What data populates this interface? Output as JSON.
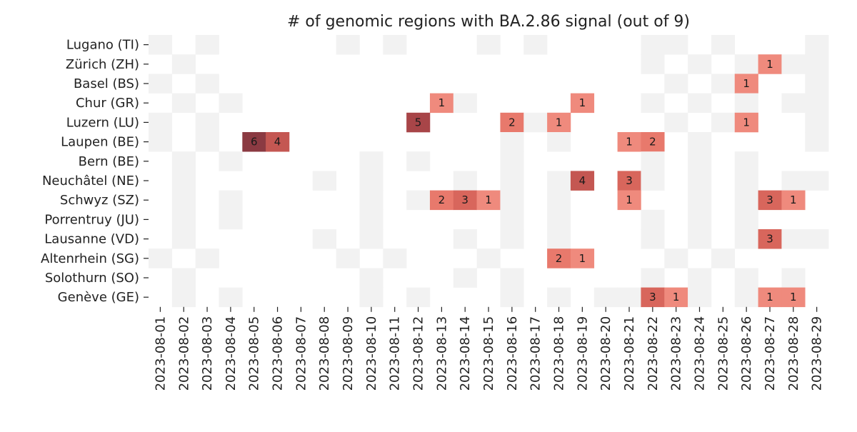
{
  "chart_data": {
    "type": "heatmap",
    "title": "# of genomic regions with BA.2.86 signal (out of 9)",
    "xlabel": "",
    "ylabel": "",
    "value_range": [
      0,
      9
    ],
    "colors": {
      "no_data": "#ffffff",
      "zero": "#f2f2f2",
      "scale": [
        "#ef8a7d",
        "#e8796c",
        "#d8665c",
        "#c45752",
        "#a84548",
        "#8b3a42"
      ]
    },
    "x_categories": [
      "2023-08-01",
      "2023-08-02",
      "2023-08-03",
      "2023-08-04",
      "2023-08-05",
      "2023-08-06",
      "2023-08-07",
      "2023-08-08",
      "2023-08-09",
      "2023-08-10",
      "2023-08-11",
      "2023-08-12",
      "2023-08-13",
      "2023-08-14",
      "2023-08-15",
      "2023-08-16",
      "2023-08-17",
      "2023-08-18",
      "2023-08-19",
      "2023-08-20",
      "2023-08-21",
      "2023-08-22",
      "2023-08-23",
      "2023-08-24",
      "2023-08-25",
      "2023-08-26",
      "2023-08-27",
      "2023-08-28",
      "2023-08-29"
    ],
    "y_categories": [
      "Lugano (TI)",
      "Zürich (ZH)",
      "Basel (BS)",
      "Chur (GR)",
      "Luzern (LU)",
      "Laupen (BE)",
      "Bern (BE)",
      "Neuchâtel (NE)",
      "Schwyz (SZ)",
      "Porrentruy (JU)",
      "Lausanne (VD)",
      "Altenrhein (SG)",
      "Solothurn (SO)",
      "Genève (GE)"
    ],
    "values": [
      [
        0,
        null,
        0,
        null,
        null,
        null,
        null,
        null,
        0,
        null,
        0,
        null,
        null,
        null,
        0,
        null,
        0,
        null,
        null,
        null,
        null,
        0,
        0,
        null,
        0,
        null,
        null,
        null,
        0
      ],
      [
        null,
        0,
        null,
        null,
        null,
        null,
        null,
        null,
        null,
        null,
        null,
        null,
        null,
        null,
        null,
        null,
        null,
        null,
        null,
        null,
        null,
        0,
        null,
        0,
        null,
        0,
        1,
        0,
        0
      ],
      [
        0,
        null,
        0,
        null,
        null,
        null,
        null,
        null,
        null,
        null,
        null,
        null,
        null,
        null,
        null,
        null,
        null,
        null,
        null,
        null,
        null,
        null,
        0,
        null,
        0,
        1,
        null,
        null,
        0
      ],
      [
        null,
        0,
        null,
        0,
        null,
        null,
        null,
        null,
        null,
        null,
        null,
        null,
        1,
        0,
        null,
        null,
        null,
        null,
        1,
        null,
        null,
        0,
        null,
        0,
        null,
        0,
        null,
        0,
        0
      ],
      [
        0,
        null,
        0,
        null,
        null,
        null,
        null,
        null,
        null,
        null,
        null,
        5,
        null,
        null,
        null,
        2,
        0,
        1,
        null,
        null,
        null,
        null,
        0,
        null,
        0,
        1,
        null,
        null,
        0
      ],
      [
        0,
        null,
        0,
        null,
        6,
        4,
        null,
        null,
        null,
        null,
        null,
        null,
        null,
        null,
        null,
        0,
        null,
        0,
        null,
        null,
        1,
        2,
        null,
        0,
        null,
        null,
        null,
        null,
        0
      ],
      [
        null,
        0,
        null,
        0,
        null,
        null,
        null,
        null,
        null,
        0,
        null,
        0,
        null,
        null,
        null,
        0,
        null,
        null,
        null,
        null,
        null,
        0,
        null,
        0,
        null,
        0,
        null,
        null,
        null
      ],
      [
        null,
        0,
        null,
        null,
        null,
        null,
        null,
        0,
        null,
        0,
        null,
        null,
        null,
        0,
        null,
        0,
        null,
        0,
        4,
        null,
        3,
        0,
        null,
        0,
        null,
        0,
        null,
        0,
        0
      ],
      [
        null,
        0,
        null,
        0,
        null,
        null,
        null,
        null,
        null,
        0,
        null,
        0,
        2,
        3,
        1,
        0,
        null,
        0,
        null,
        null,
        1,
        null,
        null,
        0,
        null,
        0,
        3,
        1,
        null
      ],
      [
        null,
        0,
        null,
        0,
        null,
        null,
        null,
        null,
        null,
        0,
        null,
        null,
        null,
        null,
        null,
        0,
        null,
        0,
        null,
        null,
        null,
        0,
        null,
        0,
        null,
        0,
        null,
        null,
        null
      ],
      [
        null,
        0,
        null,
        null,
        null,
        null,
        null,
        0,
        null,
        0,
        null,
        null,
        null,
        0,
        null,
        0,
        null,
        0,
        null,
        null,
        null,
        0,
        null,
        0,
        null,
        0,
        3,
        0,
        0
      ],
      [
        0,
        null,
        0,
        null,
        null,
        null,
        null,
        null,
        0,
        null,
        0,
        null,
        null,
        null,
        0,
        null,
        null,
        2,
        1,
        null,
        null,
        null,
        0,
        null,
        0,
        null,
        null,
        null,
        null
      ],
      [
        null,
        0,
        null,
        null,
        null,
        null,
        null,
        null,
        null,
        0,
        null,
        null,
        null,
        0,
        null,
        0,
        null,
        null,
        null,
        null,
        null,
        0,
        null,
        0,
        null,
        0,
        null,
        0,
        null
      ],
      [
        null,
        0,
        null,
        0,
        null,
        null,
        null,
        null,
        null,
        0,
        null,
        0,
        null,
        null,
        null,
        0,
        null,
        0,
        null,
        0,
        0,
        3,
        1,
        0,
        null,
        0,
        1,
        1,
        null
      ]
    ]
  }
}
